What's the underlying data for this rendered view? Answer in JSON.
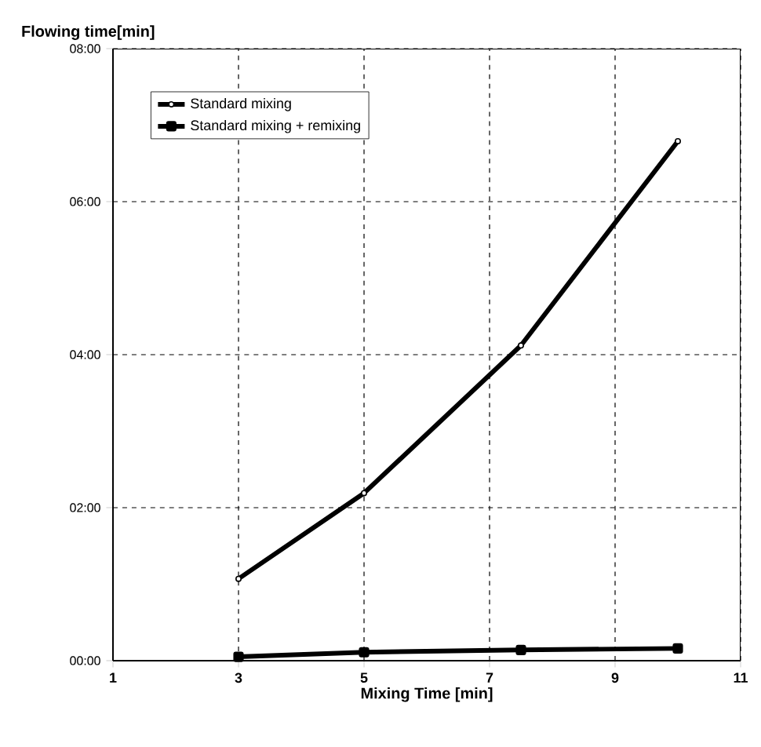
{
  "chart_data": {
    "type": "line",
    "xlabel": "Mixing Time [min]",
    "ylabel": "Flowing time[min]",
    "xlim": [
      1,
      11
    ],
    "xticks": [
      1,
      3,
      5,
      7,
      9,
      11
    ],
    "ylim": [
      0,
      8
    ],
    "yticks": [
      {
        "value": 0,
        "label": "00:00"
      },
      {
        "value": 2,
        "label": "02:00"
      },
      {
        "value": 4,
        "label": "04:00"
      },
      {
        "value": 6,
        "label": "06:00"
      },
      {
        "value": 8,
        "label": "08:00"
      }
    ],
    "grid": true,
    "legend": "top left",
    "line_style": "solid",
    "series": [
      {
        "name": "Standard mixing",
        "color": "#000000",
        "marker": "circle",
        "x": [
          3,
          5,
          7.5,
          10
        ],
        "values": [
          1.07,
          2.19,
          4.12,
          6.79
        ]
      },
      {
        "name": "Standard mixing + remixing",
        "color": "#000000",
        "marker": "square",
        "x": [
          3,
          5,
          7.5,
          10
        ],
        "values": [
          0.05,
          0.11,
          0.14,
          0.16
        ]
      }
    ]
  }
}
